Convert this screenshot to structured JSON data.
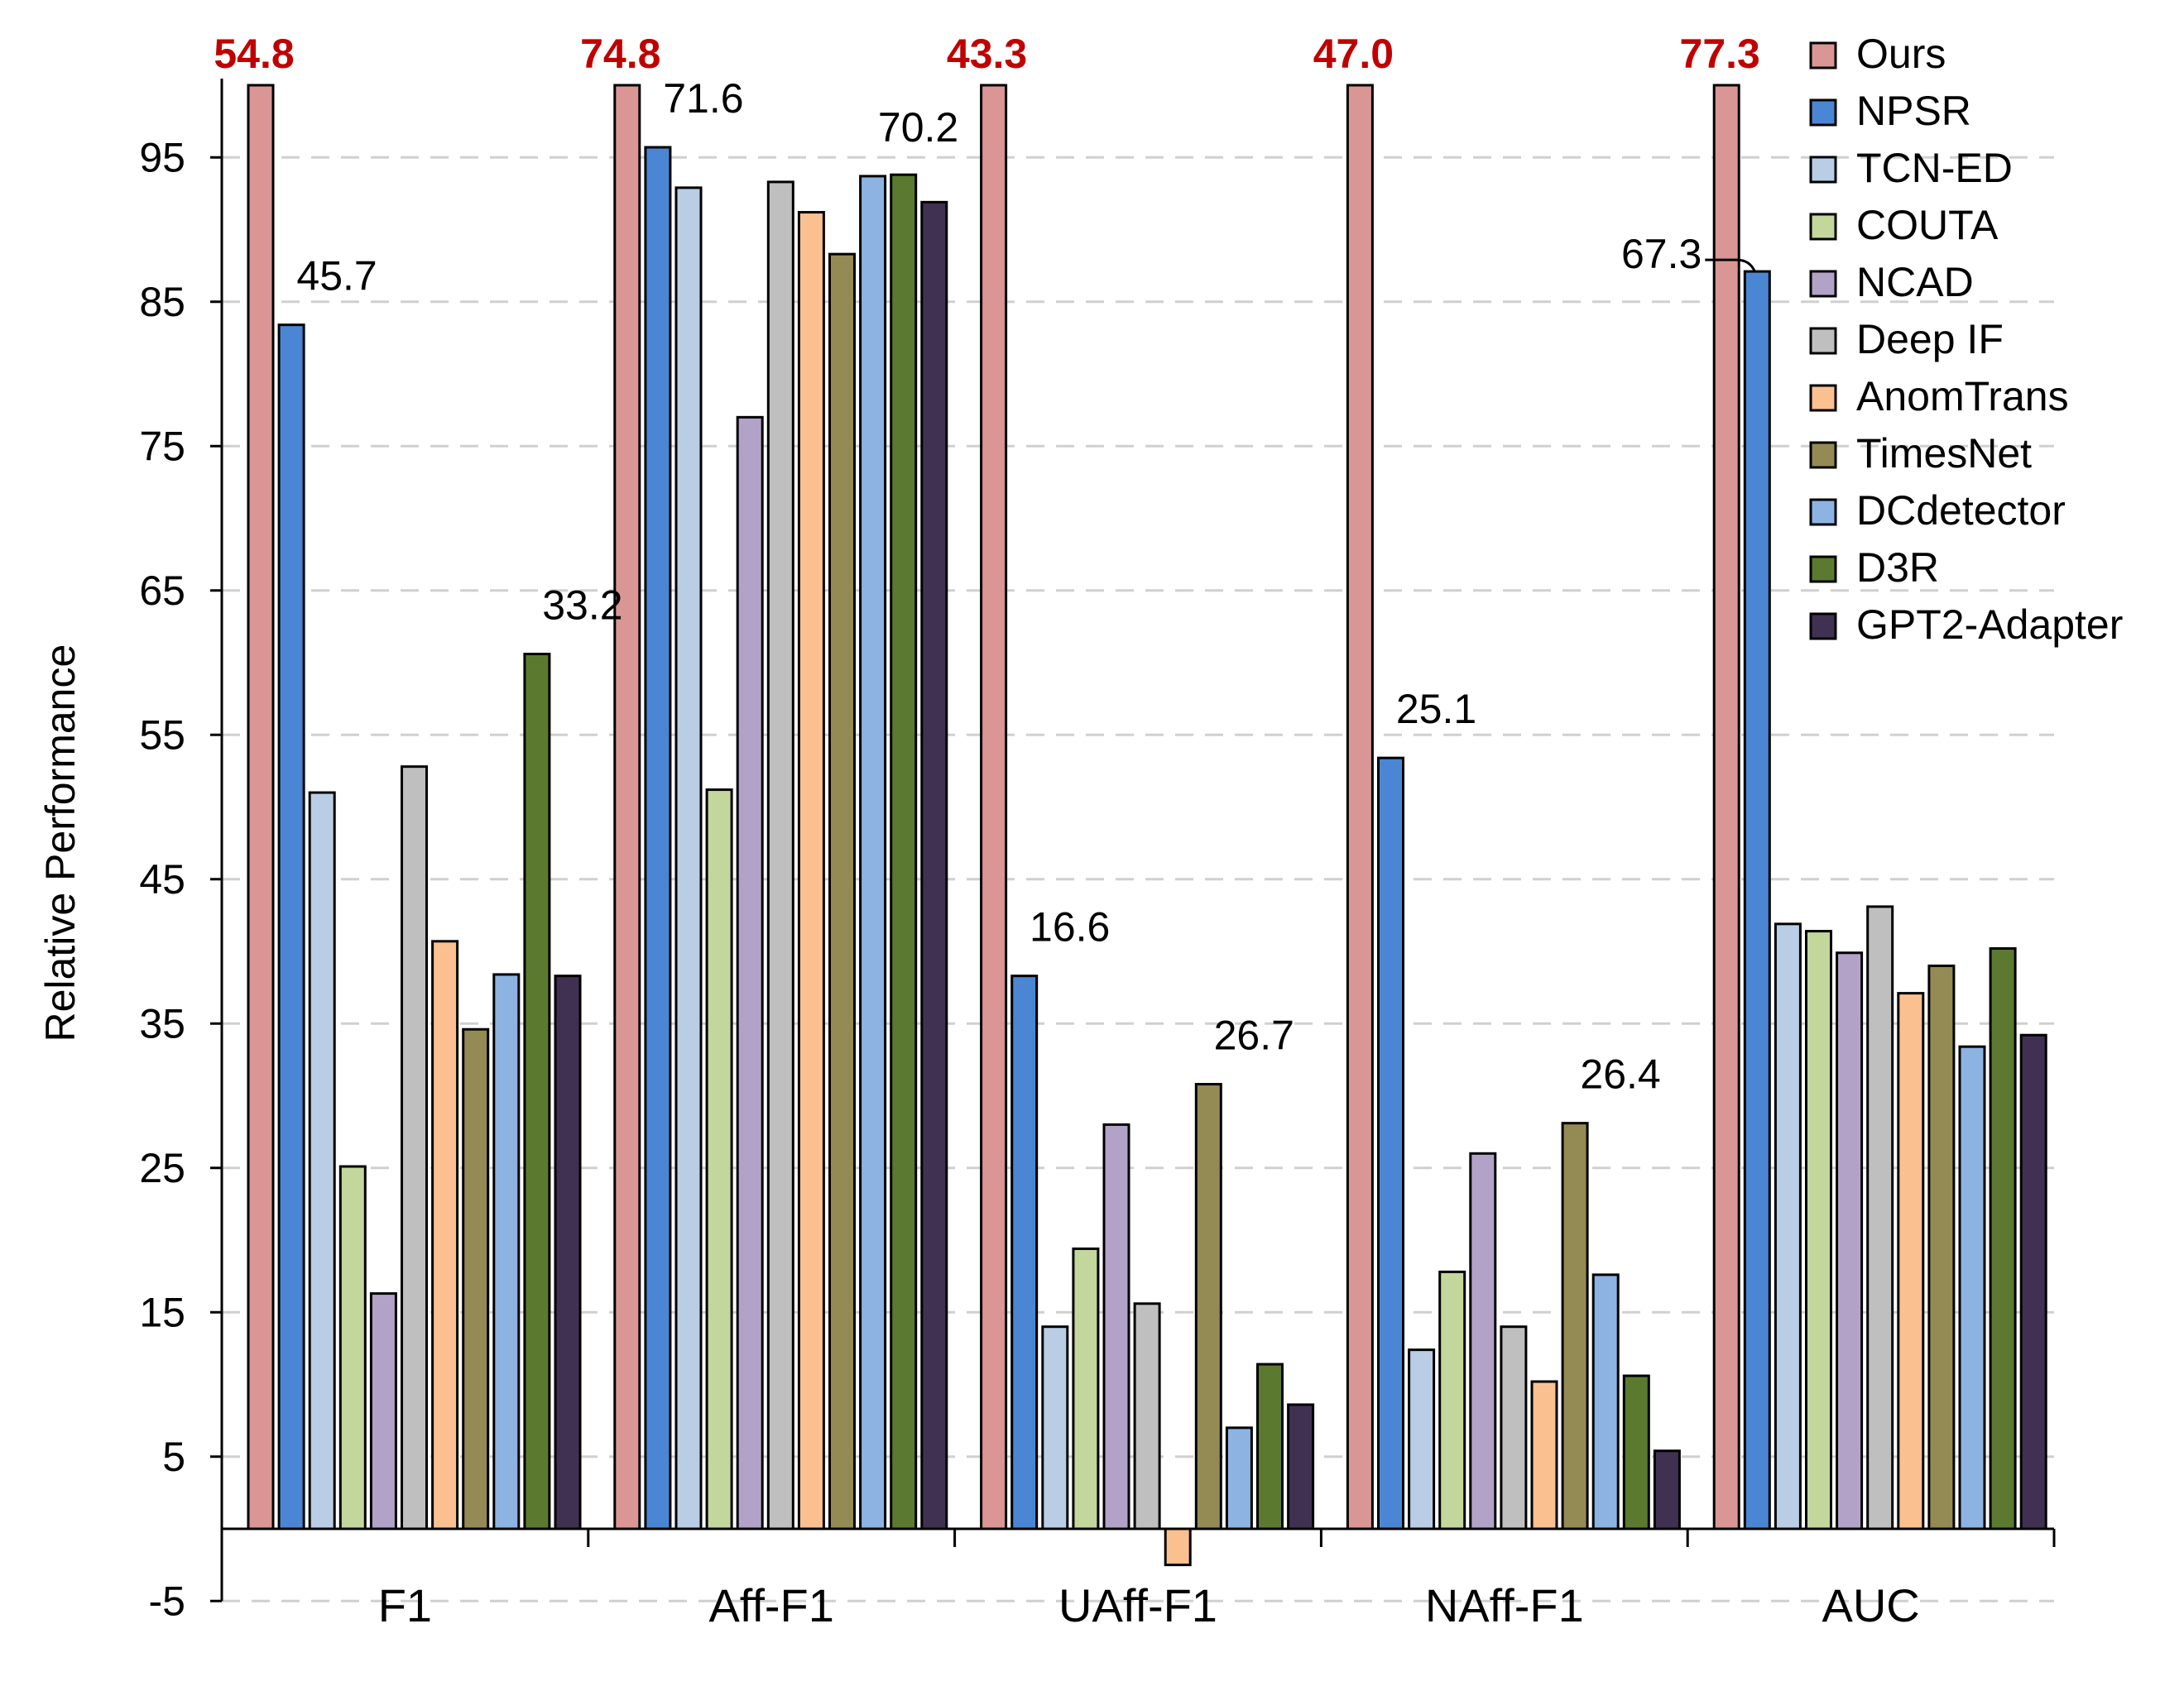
{
  "chart_data": {
    "type": "bar",
    "title": "",
    "xlabel": "",
    "ylabel": "Relative Performance",
    "ylim": [
      -5,
      100
    ],
    "yticks": [
      "95",
      "85",
      "75",
      "65",
      "55",
      "45",
      "35",
      "25",
      "15",
      "5",
      "-5"
    ],
    "ytick_values": [
      95,
      85,
      75,
      65,
      55,
      45,
      35,
      25,
      15,
      5,
      -5
    ],
    "grid": "horizontal dashed",
    "legend_position": "top-right",
    "categories": [
      "F1",
      "Aff-F1",
      "UAff-F1",
      "NAff-F1",
      "AUC"
    ],
    "series": [
      {
        "name": "Ours",
        "color": "#D99694",
        "values": [
          100,
          100,
          100,
          100,
          100
        ]
      },
      {
        "name": "NPSR",
        "color": "#4A86D4",
        "values": [
          83.4,
          95.7,
          38.3,
          53.4,
          87.1
        ]
      },
      {
        "name": "TCN-ED",
        "color": "#B9CDE5",
        "values": [
          51.0,
          92.9,
          14.0,
          12.4,
          41.9
        ]
      },
      {
        "name": "COUTA",
        "color": "#C3D69B",
        "values": [
          25.1,
          51.2,
          19.4,
          17.8,
          41.4
        ]
      },
      {
        "name": "NCAD",
        "color": "#B3A2C7",
        "values": [
          16.3,
          77.0,
          28.0,
          26.0,
          39.9
        ]
      },
      {
        "name": "Deep IF",
        "color": "#BFBFBF",
        "values": [
          52.8,
          93.3,
          15.6,
          14.0,
          43.1
        ]
      },
      {
        "name": "AnomTrans",
        "color": "#FAC090",
        "values": [
          40.7,
          91.2,
          -2.5,
          10.2,
          37.1
        ]
      },
      {
        "name": "TimesNet",
        "color": "#948A54",
        "values": [
          34.6,
          88.3,
          30.8,
          28.1,
          39.0
        ]
      },
      {
        "name": "DCdetector",
        "color": "#8DB3E2",
        "values": [
          38.4,
          93.7,
          7.0,
          17.6,
          33.4
        ]
      },
      {
        "name": "D3R",
        "color": "#5B7A2F",
        "values": [
          60.6,
          93.8,
          11.4,
          10.6,
          40.2
        ]
      },
      {
        "name": "GPT2-Adapter",
        "color": "#403152",
        "values": [
          38.3,
          91.9,
          8.6,
          5.4,
          34.2
        ]
      }
    ],
    "top_labels": [
      "54.8",
      "74.8",
      "43.3",
      "47.0",
      "77.3"
    ],
    "top_label_color": "#C00000",
    "annotations": [
      {
        "text": "45.7",
        "category": 0,
        "series": 1
      },
      {
        "text": "33.2",
        "category": 0,
        "series": 9
      },
      {
        "text": "71.6",
        "category": 1,
        "series": 1
      },
      {
        "text": "70.2",
        "category": 1,
        "series": 8
      },
      {
        "text": "16.6",
        "category": 2,
        "series": 1
      },
      {
        "text": "26.7",
        "category": 2,
        "series": 7
      },
      {
        "text": "25.1",
        "category": 3,
        "series": 1
      },
      {
        "text": "26.4",
        "category": 3,
        "series": 7
      },
      {
        "text": "67.3",
        "category": 4,
        "series": 1
      }
    ]
  }
}
